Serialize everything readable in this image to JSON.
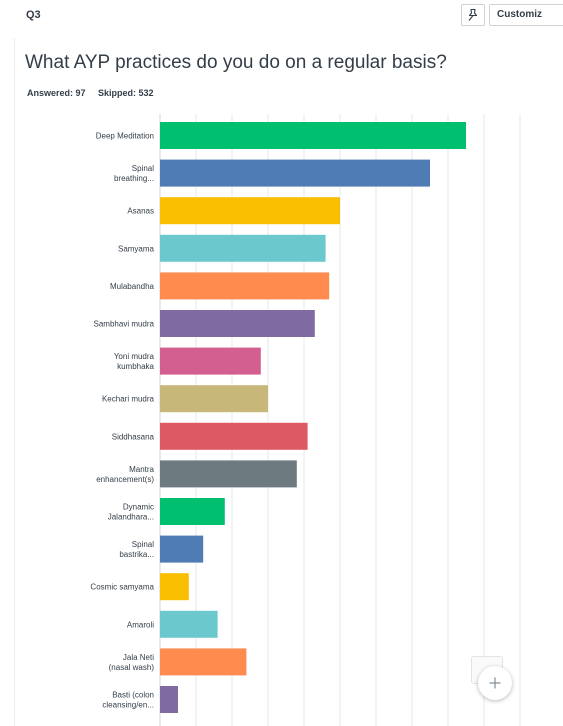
{
  "question": {
    "number": "Q3",
    "title": "What AYP practices do you do on a regular basis?",
    "answered": "Answered: 97",
    "skipped": "Skipped: 532"
  },
  "toolbar": {
    "customize_label": "Customiz",
    "pin_icon": "pin-icon"
  },
  "fab_icon": "plus-icon",
  "chart_data": {
    "type": "bar",
    "orientation": "horizontal",
    "categories": [
      [
        "Deep Meditation"
      ],
      [
        "Spinal",
        "breathing..."
      ],
      [
        "Asanas"
      ],
      [
        "Samyama"
      ],
      [
        "Mulabandha"
      ],
      [
        "Sambhavi mudra"
      ],
      [
        "Yoni mudra",
        "kumbhaka"
      ],
      [
        "Kechari mudra"
      ],
      [
        "Siddhasana"
      ],
      [
        "Mantra",
        "enhancement(s)"
      ],
      [
        "Dynamic",
        "Jalandhara..."
      ],
      [
        "Spinal",
        "bastrika..."
      ],
      [
        "Cosmic samyama"
      ],
      [
        "Amaroli"
      ],
      [
        "Jala Neti",
        "(nasal wash)"
      ],
      [
        "Basti (colon",
        "cleansing/en..."
      ]
    ],
    "values": [
      85,
      75,
      50,
      46,
      47,
      43,
      28,
      30,
      41,
      38,
      18,
      12,
      8,
      16,
      24,
      5
    ],
    "xlim": [
      0,
      100
    ],
    "grid": true,
    "colors": [
      "#00bf6f",
      "#507cb6",
      "#f9be00",
      "#6bc8cd",
      "#ff8b4f",
      "#7f6aa1",
      "#d25f90",
      "#c7b879",
      "#dd5a64",
      "#6d7a80",
      "#00bf6f",
      "#507cb6",
      "#f9be00",
      "#6bc8cd",
      "#ff8b4f",
      "#7f6aa1"
    ]
  }
}
